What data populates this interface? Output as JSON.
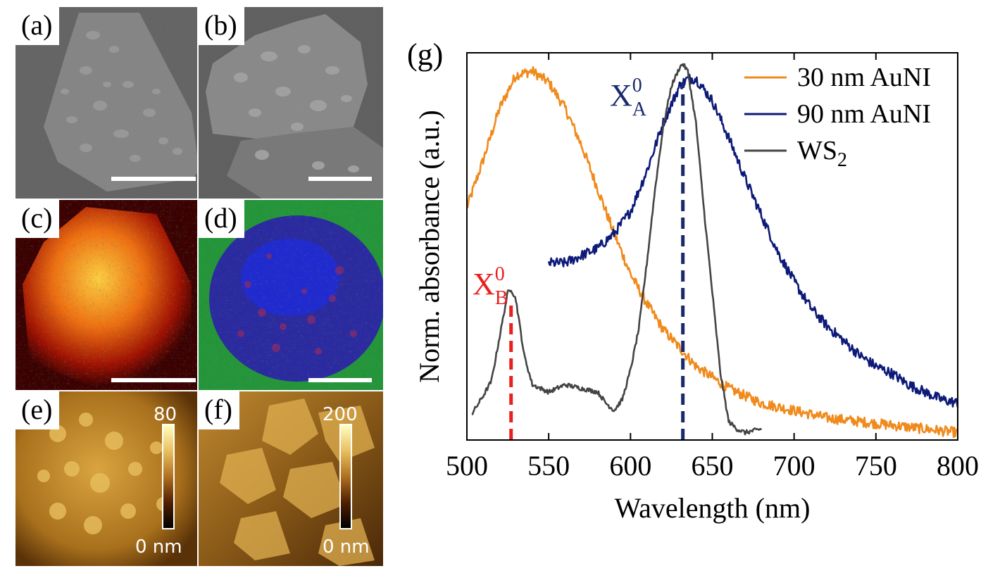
{
  "panels": {
    "a": {
      "label": "(a)"
    },
    "b": {
      "label": "(b)"
    },
    "c": {
      "label": "(c)"
    },
    "d": {
      "label": "(d)"
    },
    "e": {
      "label": "(e)",
      "cbar_max": "80",
      "cbar_min": "0 nm"
    },
    "f": {
      "label": "(f)",
      "cbar_max": "200",
      "cbar_min": "0 nm"
    }
  },
  "chart_data": {
    "type": "line",
    "panel_label": "(g)",
    "xlabel": "Wavelength (nm)",
    "ylabel": "Norm. absorbance (a.u.)",
    "xlim": [
      500,
      800
    ],
    "ylim": [
      0,
      1.05
    ],
    "xticks": [
      500,
      550,
      600,
      650,
      700,
      750,
      800
    ],
    "legend_position": "top-right",
    "series": [
      {
        "name": "30 nm AuNI",
        "color": "#f08a1c",
        "x": [
          500,
          510,
          520,
          530,
          540,
          550,
          560,
          570,
          580,
          590,
          600,
          610,
          620,
          630,
          640,
          650,
          660,
          670,
          680,
          690,
          700,
          710,
          720,
          730,
          740,
          750,
          760,
          770,
          780,
          790,
          800
        ],
        "y": [
          0.63,
          0.76,
          0.9,
          0.99,
          1.0,
          0.97,
          0.9,
          0.8,
          0.68,
          0.56,
          0.45,
          0.37,
          0.3,
          0.25,
          0.2,
          0.17,
          0.14,
          0.12,
          0.1,
          0.09,
          0.08,
          0.07,
          0.06,
          0.055,
          0.05,
          0.045,
          0.04,
          0.035,
          0.03,
          0.025,
          0.02
        ]
      },
      {
        "name": "90 nm AuNI",
        "color": "#0d1a78",
        "x": [
          550,
          560,
          570,
          580,
          590,
          600,
          610,
          620,
          630,
          635,
          640,
          650,
          660,
          670,
          680,
          690,
          700,
          710,
          720,
          730,
          740,
          750,
          760,
          770,
          780,
          790,
          800
        ],
        "y": [
          0.48,
          0.48,
          0.5,
          0.52,
          0.56,
          0.62,
          0.73,
          0.86,
          0.96,
          0.98,
          0.98,
          0.92,
          0.82,
          0.71,
          0.61,
          0.51,
          0.43,
          0.36,
          0.31,
          0.27,
          0.23,
          0.2,
          0.18,
          0.15,
          0.13,
          0.11,
          0.1
        ]
      },
      {
        "name": "WS2",
        "color": "#444444",
        "x": [
          503,
          510,
          515,
          520,
          525,
          527,
          530,
          535,
          540,
          545,
          550,
          555,
          560,
          570,
          580,
          585,
          590,
          595,
          600,
          605,
          610,
          615,
          620,
          625,
          630,
          632,
          635,
          640,
          645,
          650,
          655,
          660,
          665,
          670,
          680
        ],
        "y": [
          0.07,
          0.12,
          0.16,
          0.28,
          0.4,
          0.41,
          0.38,
          0.23,
          0.15,
          0.14,
          0.13,
          0.14,
          0.15,
          0.14,
          0.13,
          0.1,
          0.08,
          0.11,
          0.19,
          0.3,
          0.48,
          0.68,
          0.85,
          0.96,
          1.01,
          1.02,
          1.0,
          0.86,
          0.62,
          0.4,
          0.18,
          0.05,
          0.03,
          0.02,
          0.03
        ]
      }
    ],
    "annotations": [
      {
        "base": "X",
        "sup": "0",
        "sub": "A",
        "color": "#1a2a6c",
        "at": [
          630,
          1.02
        ],
        "vline_x": 632,
        "vline_color": "#1a2a6c"
      },
      {
        "base": "X",
        "sup": "0",
        "sub": "B",
        "color": "#e8201e",
        "at": [
          525,
          0.44
        ],
        "vline_x": 527,
        "vline_color": "#e8201e"
      }
    ]
  }
}
